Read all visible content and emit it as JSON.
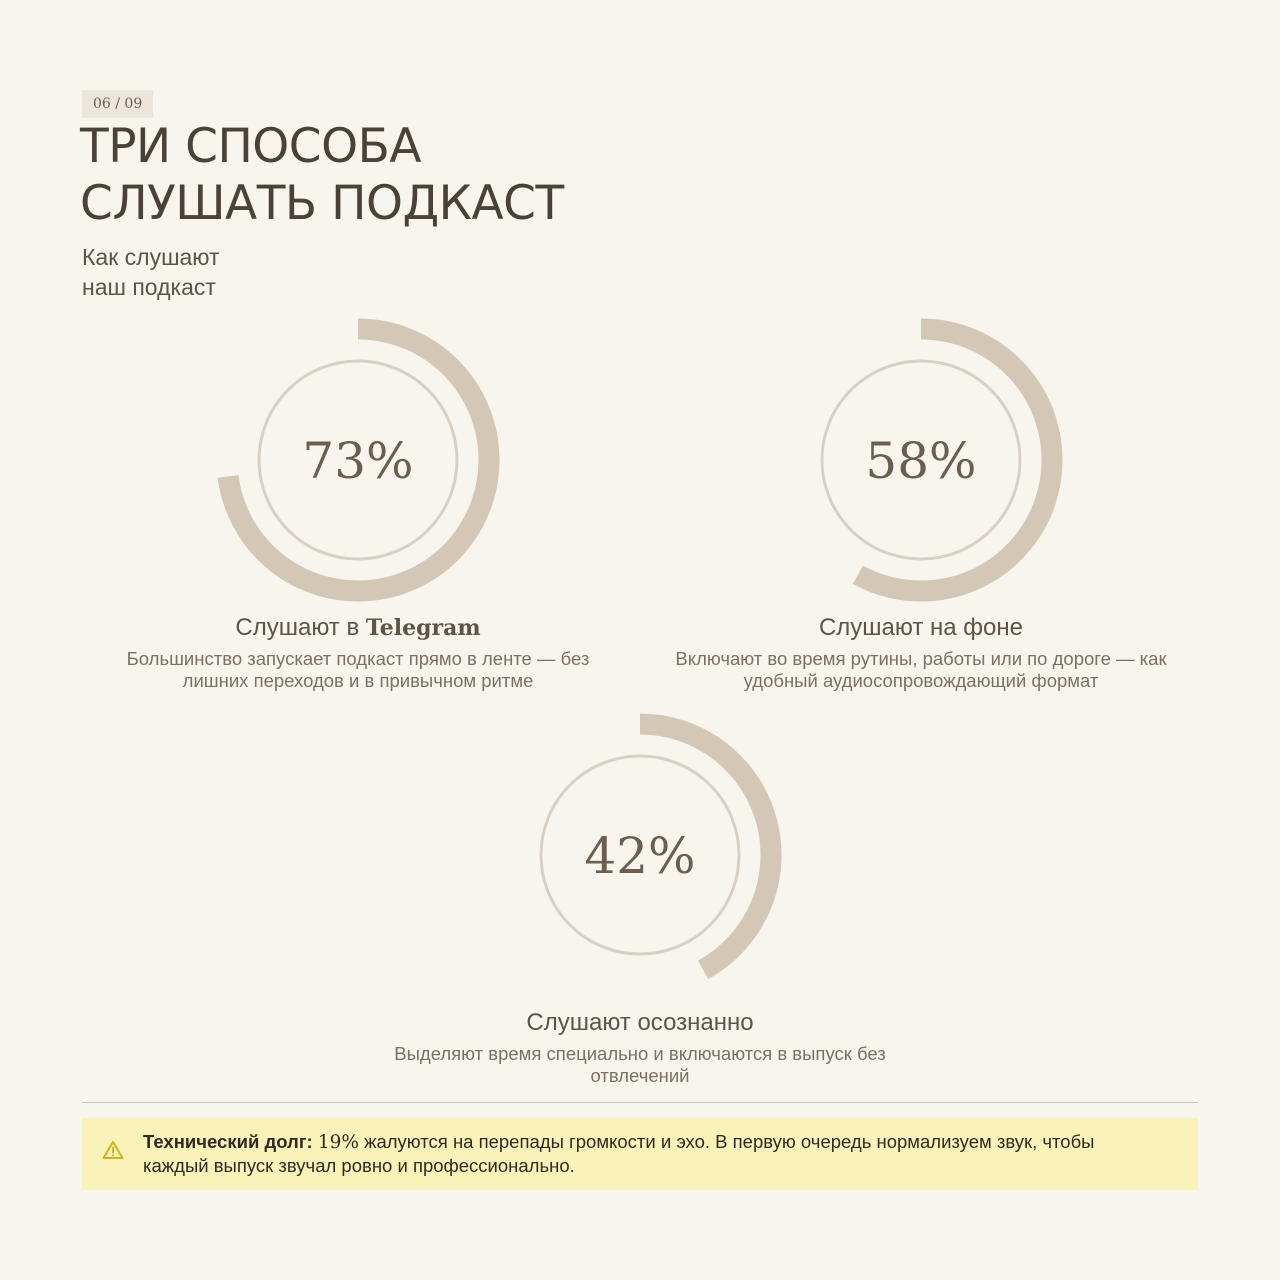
{
  "page_counter": "06 / 09",
  "title_lines": [
    "ТРИ СПОСОБА",
    "СЛУШАТЬ ПОДКАСТ"
  ],
  "subtitle_lines": [
    "Как слушают",
    "наш подкаст"
  ],
  "colors": {
    "background": "#f8f5ee",
    "arc": "#d4c7b6",
    "inner_ring": "#d8d0c5",
    "callout_bg": "#faf2b8",
    "warning_icon": "#d4b21c"
  },
  "chart_data": {
    "type": "pie",
    "items": [
      {
        "value": 73,
        "value_label": "73%",
        "label_prefix": "Слушают в ",
        "label_brand": "Telegram",
        "description": "Большинство запускает подкаст прямо в ленте — без лишних переходов и в привычном ритме"
      },
      {
        "value": 58,
        "value_label": "58%",
        "label_prefix": "Слушают на фоне",
        "label_brand": "",
        "description": "Включают во время рутины, работы или по дороге — как удобный аудиосопровождающий формат"
      },
      {
        "value": 42,
        "value_label": "42%",
        "label_prefix": "Слушают осознанно",
        "label_brand": "",
        "description": "Выделяют время специально и включаются в выпуск без отвлечений"
      }
    ]
  },
  "callout": {
    "icon": "warning-icon",
    "title": "Технический долг:",
    "value": "19%",
    "text": " жалуются на перепады громкости и эхо. В первую очередь нормализуем звук, чтобы каждый выпуск звучал ровно и профессионально."
  }
}
